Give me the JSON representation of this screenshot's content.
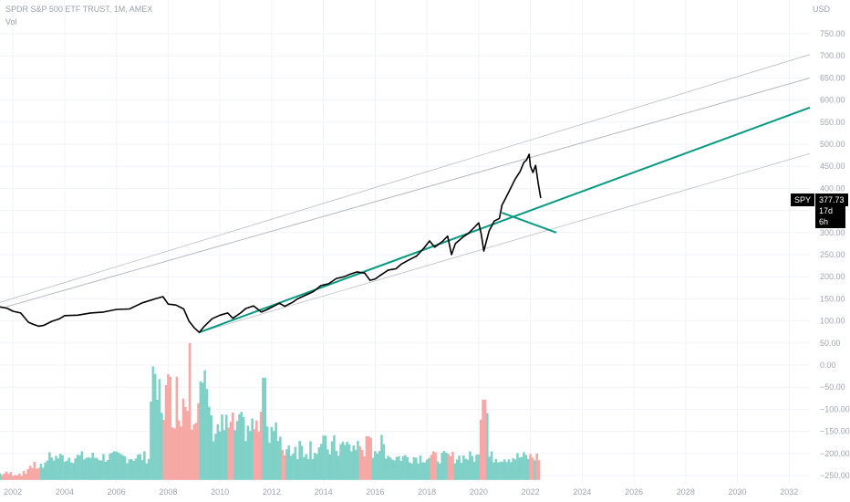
{
  "header": {
    "symbol_line": "SPDR S&P 500 ETF TRUST, 1M, AMEX",
    "volume_label": "Vol",
    "currency": "USD"
  },
  "price_tag": {
    "ticker": "SPY",
    "price": "377.73",
    "countdown": "17d 6h"
  },
  "colors": {
    "price_line": "#000000",
    "trend_line": "#089981",
    "channel_line": "#b2b5be",
    "volume_up": "#7fd1c7",
    "volume_down": "#f6a8a5",
    "grid": "#f0f3fa"
  },
  "chart_data": {
    "type": "line",
    "title": "SPDR S&P 500 ETF TRUST, 1M, AMEX",
    "ylabel": "USD",
    "ylim": [
      -265,
      790
    ],
    "xlim": [
      2001.5,
      2032.8
    ],
    "grid": true,
    "y_ticks": [
      "750.00",
      "700.00",
      "650.00",
      "600.00",
      "550.00",
      "500.00",
      "450.00",
      "400.00",
      "350.00",
      "300.00",
      "250.00",
      "200.00",
      "150.00",
      "100.00",
      "50.00",
      "0.00",
      "−50.00",
      "−100.00",
      "−150.00",
      "−200.00",
      "−250.00"
    ],
    "y_tick_values": [
      750,
      700,
      650,
      600,
      550,
      500,
      450,
      400,
      350,
      300,
      250,
      200,
      150,
      100,
      50,
      0,
      -50,
      -100,
      -150,
      -200,
      -250
    ],
    "x_ticks": [
      "2002",
      "2004",
      "2006",
      "2008",
      "2010",
      "2012",
      "2014",
      "2016",
      "2018",
      "2020",
      "2022",
      "2024",
      "2026",
      "2028",
      "2030",
      "2032"
    ],
    "x_tick_values": [
      2002,
      2004,
      2006,
      2008,
      2010,
      2012,
      2014,
      2016,
      2018,
      2020,
      2022,
      2024,
      2026,
      2028,
      2030,
      2032
    ],
    "price_series": [
      [
        2001.5,
        132
      ],
      [
        2001.8,
        128
      ],
      [
        2002.0,
        122
      ],
      [
        2002.3,
        118
      ],
      [
        2002.6,
        97
      ],
      [
        2002.8,
        92
      ],
      [
        2003.0,
        88
      ],
      [
        2003.2,
        90
      ],
      [
        2003.5,
        99
      ],
      [
        2003.8,
        105
      ],
      [
        2004.0,
        112
      ],
      [
        2004.5,
        113
      ],
      [
        2005.0,
        118
      ],
      [
        2005.5,
        120
      ],
      [
        2006.0,
        126
      ],
      [
        2006.5,
        127
      ],
      [
        2007.0,
        141
      ],
      [
        2007.5,
        150
      ],
      [
        2007.8,
        155
      ],
      [
        2008.0,
        138
      ],
      [
        2008.3,
        136
      ],
      [
        2008.6,
        127
      ],
      [
        2008.8,
        100
      ],
      [
        2009.0,
        85
      ],
      [
        2009.2,
        74
      ],
      [
        2009.4,
        88
      ],
      [
        2009.7,
        105
      ],
      [
        2010.0,
        113
      ],
      [
        2010.3,
        118
      ],
      [
        2010.5,
        106
      ],
      [
        2010.8,
        118
      ],
      [
        2011.0,
        128
      ],
      [
        2011.3,
        134
      ],
      [
        2011.6,
        120
      ],
      [
        2011.8,
        125
      ],
      [
        2012.0,
        131
      ],
      [
        2012.3,
        140
      ],
      [
        2012.5,
        133
      ],
      [
        2012.8,
        142
      ],
      [
        2013.0,
        150
      ],
      [
        2013.3,
        158
      ],
      [
        2013.6,
        166
      ],
      [
        2013.9,
        180
      ],
      [
        2014.2,
        184
      ],
      [
        2014.5,
        196
      ],
      [
        2014.8,
        200
      ],
      [
        2015.0,
        205
      ],
      [
        2015.3,
        211
      ],
      [
        2015.6,
        208
      ],
      [
        2015.8,
        192
      ],
      [
        2016.0,
        195
      ],
      [
        2016.2,
        203
      ],
      [
        2016.5,
        215
      ],
      [
        2016.8,
        218
      ],
      [
        2017.0,
        228
      ],
      [
        2017.3,
        238
      ],
      [
        2017.6,
        247
      ],
      [
        2017.9,
        266
      ],
      [
        2018.1,
        281
      ],
      [
        2018.3,
        267
      ],
      [
        2018.6,
        280
      ],
      [
        2018.8,
        292
      ],
      [
        2018.95,
        250
      ],
      [
        2019.1,
        275
      ],
      [
        2019.4,
        290
      ],
      [
        2019.6,
        298
      ],
      [
        2019.8,
        310
      ],
      [
        2020.0,
        322
      ],
      [
        2020.1,
        296
      ],
      [
        2020.2,
        258
      ],
      [
        2020.4,
        303
      ],
      [
        2020.6,
        326
      ],
      [
        2020.8,
        332
      ],
      [
        2020.9,
        362
      ],
      [
        2021.0,
        373
      ],
      [
        2021.2,
        396
      ],
      [
        2021.4,
        420
      ],
      [
        2021.6,
        438
      ],
      [
        2021.75,
        459
      ],
      [
        2021.85,
        464
      ],
      [
        2021.95,
        477
      ],
      [
        2022.0,
        450
      ],
      [
        2022.1,
        436
      ],
      [
        2022.2,
        452
      ],
      [
        2022.3,
        412
      ],
      [
        2022.4,
        378
      ]
    ],
    "trend_lines": [
      {
        "role": "uptrend",
        "points": [
          [
            2009.2,
            74
          ],
          [
            2032.8,
            583
          ]
        ]
      },
      {
        "role": "breakout",
        "points": [
          [
            2020.9,
            345
          ],
          [
            2023.0,
            300
          ]
        ]
      }
    ],
    "channel_lines": [
      {
        "points": [
          [
            2001.5,
            142
          ],
          [
            2032.8,
            703
          ]
        ]
      },
      {
        "points": [
          [
            2001.5,
            128
          ],
          [
            2032.8,
            650
          ]
        ]
      },
      {
        "points": [
          [
            2009.2,
            74
          ],
          [
            2032.8,
            479
          ]
        ]
      }
    ],
    "volume": {
      "baseline": -260,
      "x_start": 2001.5,
      "x_end": 2022.4
    }
  }
}
